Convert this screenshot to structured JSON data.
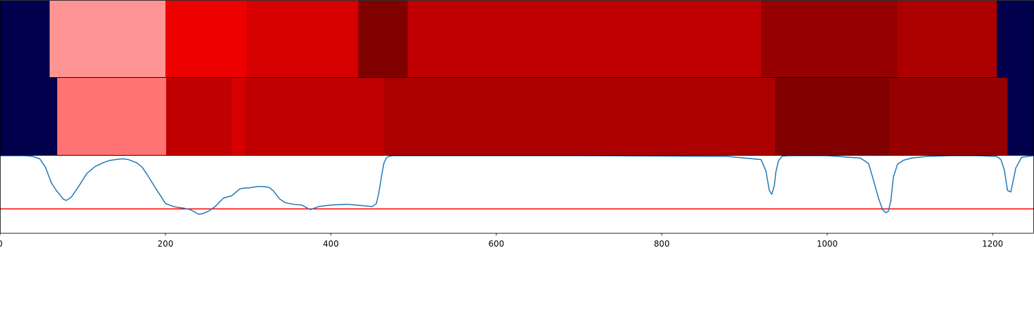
{
  "chart_data": {
    "type": "heatmap",
    "xlim": [
      0,
      1250
    ],
    "x_ticks": [
      0,
      200,
      400,
      600,
      800,
      1000,
      1200
    ],
    "x_tick_labels": [
      "0",
      "200",
      "400",
      "600",
      "800",
      "1000",
      "1200"
    ],
    "segment_rows": [
      {
        "segments": [
          {
            "x0": 0,
            "x1": 60,
            "color": "#00004c"
          },
          {
            "x0": 60,
            "x1": 200,
            "color": "#ff9494"
          },
          {
            "x0": 200,
            "x1": 298,
            "color": "#ed0000"
          },
          {
            "x0": 298,
            "x1": 433,
            "color": "#d60000"
          },
          {
            "x0": 433,
            "x1": 493,
            "color": "#800000"
          },
          {
            "x0": 493,
            "x1": 920,
            "color": "#c00000"
          },
          {
            "x0": 920,
            "x1": 1085,
            "color": "#960000"
          },
          {
            "x0": 1085,
            "x1": 1205,
            "color": "#ac0000"
          },
          {
            "x0": 1205,
            "x1": 1250,
            "color": "#00004c"
          }
        ]
      },
      {
        "segments": [
          {
            "x0": 0,
            "x1": 69,
            "color": "#00004c"
          },
          {
            "x0": 69,
            "x1": 201,
            "color": "#ff7373"
          },
          {
            "x0": 201,
            "x1": 280,
            "color": "#c00000"
          },
          {
            "x0": 280,
            "x1": 297,
            "color": "#d60000"
          },
          {
            "x0": 297,
            "x1": 464,
            "color": "#c00000"
          },
          {
            "x0": 464,
            "x1": 937,
            "color": "#ac0000"
          },
          {
            "x0": 937,
            "x1": 1075,
            "color": "#800000"
          },
          {
            "x0": 1075,
            "x1": 1218,
            "color": "#960000"
          },
          {
            "x0": 1218,
            "x1": 1250,
            "color": "#00004c"
          }
        ]
      }
    ],
    "line_panel": {
      "ylim": [
        0,
        1
      ],
      "threshold": 0.31,
      "series": [
        {
          "color": "#1f77b4",
          "x": [
            0,
            30,
            40,
            48,
            55,
            62,
            68,
            72,
            76,
            80,
            86,
            95,
            105,
            115,
            125,
            133,
            140,
            148,
            155,
            160,
            165,
            172,
            180,
            188,
            196,
            200,
            205,
            210,
            215,
            222,
            230,
            237,
            240,
            245,
            252,
            260,
            270,
            280,
            290,
            295,
            300,
            305,
            312,
            318,
            325,
            330,
            338,
            345,
            355,
            365,
            375,
            385,
            400,
            420,
            440,
            450,
            455,
            458,
            461,
            464,
            467,
            470,
            475,
            480,
            490,
            510,
            700,
            880,
            920,
            926,
            930,
            933,
            936,
            938,
            941,
            945,
            952,
            965,
            1000,
            1040,
            1050,
            1056,
            1062,
            1067,
            1071,
            1074,
            1077,
            1080,
            1085,
            1092,
            1102,
            1120,
            1150,
            1180,
            1205,
            1210,
            1214,
            1218,
            1222,
            1228,
            1235,
            1250
          ],
          "y": [
            1.0,
            1.0,
            0.99,
            0.96,
            0.85,
            0.65,
            0.55,
            0.5,
            0.44,
            0.42,
            0.46,
            0.6,
            0.77,
            0.86,
            0.91,
            0.94,
            0.95,
            0.96,
            0.95,
            0.93,
            0.91,
            0.85,
            0.72,
            0.58,
            0.45,
            0.38,
            0.36,
            0.34,
            0.33,
            0.32,
            0.3,
            0.26,
            0.24,
            0.25,
            0.28,
            0.34,
            0.45,
            0.48,
            0.57,
            0.58,
            0.58,
            0.59,
            0.6,
            0.6,
            0.59,
            0.55,
            0.44,
            0.39,
            0.37,
            0.36,
            0.3,
            0.34,
            0.36,
            0.37,
            0.35,
            0.34,
            0.38,
            0.52,
            0.72,
            0.9,
            0.97,
            0.99,
            1.0,
            1.0,
            1.0,
            1.0,
            1.0,
            0.99,
            0.95,
            0.8,
            0.55,
            0.5,
            0.61,
            0.79,
            0.93,
            0.99,
            1.0,
            1.0,
            1.0,
            0.97,
            0.9,
            0.68,
            0.45,
            0.3,
            0.26,
            0.28,
            0.42,
            0.72,
            0.89,
            0.94,
            0.97,
            0.99,
            1.0,
            1.0,
            0.99,
            0.95,
            0.82,
            0.55,
            0.53,
            0.84,
            0.98,
            1.0
          ]
        }
      ],
      "threshold_color": "#ff0000"
    }
  }
}
